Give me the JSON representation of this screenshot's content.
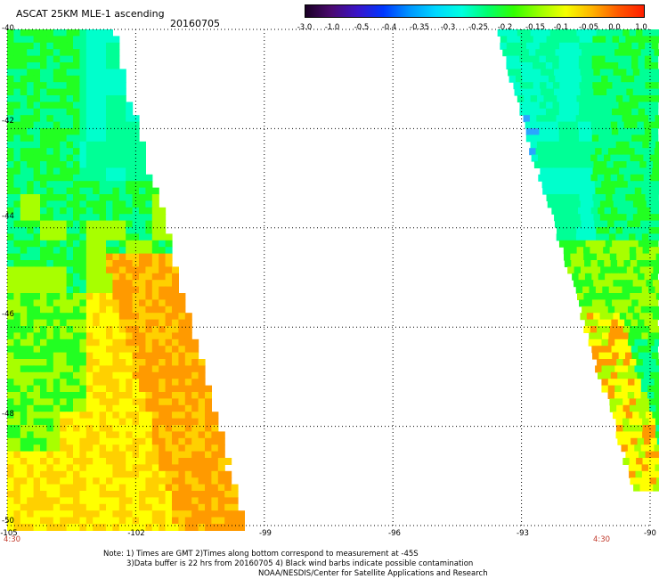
{
  "header": {
    "title": "ASCAT 25KM MLE-1 ascending",
    "date": "20160705"
  },
  "colorbar": {
    "ticks": [
      "-3.0",
      "-1.0",
      "-0.5",
      "-0.4",
      "-0.35",
      "-0.3",
      "-0.25",
      "-0.2",
      "-0.15",
      "-0.1",
      "-0.05",
      "0.0",
      "1.0"
    ],
    "colors": [
      "#1a0025",
      "#4b0a70",
      "#3a14c8",
      "#0037ff",
      "#0096ff",
      "#00d7ff",
      "#00ffe0",
      "#00ff6e",
      "#32ff00",
      "#9bff00",
      "#f5ff00",
      "#ffb400",
      "#ff5a00",
      "#ff1e00"
    ]
  },
  "map": {
    "lon_range": [
      -105,
      -90
    ],
    "lat_range": [
      -50,
      -40
    ],
    "y_labels": [
      "-40",
      "-42",
      "-44",
      "-46",
      "-48",
      "-50"
    ],
    "x_labels": [
      "-105",
      "-102",
      "-99",
      "-96",
      "-93",
      "-90"
    ],
    "time_labels": [
      "4:30",
      "4:30"
    ],
    "palette": {
      "cyan": "#00ffcc",
      "teal_green": "#00ff96",
      "green": "#22ff22",
      "yellow_green": "#a8ff00",
      "yellow": "#ffff00",
      "orange_yellow": "#ffd000",
      "orange": "#ff9a00",
      "blue": "#2aa5ff",
      "red": "#ff3a00"
    }
  },
  "notes": {
    "line1": "Note: 1) Times are GMT 2)Times along bottom correspond to measurement at -45S",
    "line2": "3)Data buffer is 22 hrs from 20160705 4) Black wind barbs indicate possible contamination",
    "line3": "NOAA/NESDIS/Center for Satellite Applications and Research"
  }
}
